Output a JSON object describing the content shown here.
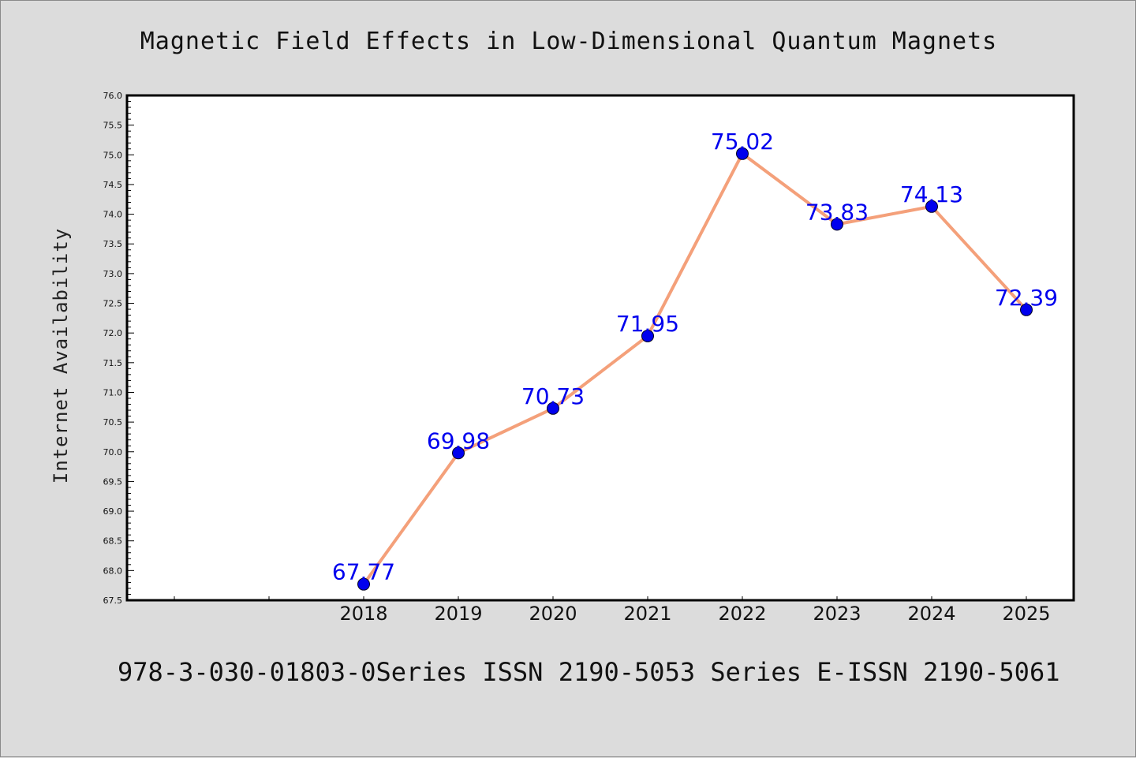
{
  "title": "Magnetic Field Effects in Low-Dimensional Quantum Magnets",
  "footer": "978-3-030-01803-0Series ISSN 2190-5053 Series E-ISSN 2190-5061",
  "colors": {
    "background": "#dcdcdc",
    "plot_background": "#ffffff",
    "line": "#f4a07a",
    "marker": "#0000ee",
    "data_label": "#0000ee"
  },
  "chart_data": {
    "type": "line",
    "title": "Magnetic Field Effects in Low-Dimensional Quantum Magnets",
    "xlabel": "",
    "ylabel": "Internet Availability",
    "x": [
      "2018",
      "2019",
      "2020",
      "2021",
      "2022",
      "2023",
      "2024",
      "2025"
    ],
    "series": [
      {
        "values": [
          67.77,
          69.98,
          70.73,
          71.95,
          75.02,
          73.83,
          74.13,
          72.39
        ]
      }
    ],
    "data_labels": [
      "67.77",
      "69.98",
      "70.73",
      "71.95",
      "75.02",
      "73.83",
      "74.13",
      "72.39"
    ],
    "ylim": [
      67.5,
      76.0
    ],
    "yticks": [
      "67.5",
      "68.0",
      "68.5",
      "69.0",
      "69.5",
      "70.0",
      "70.5",
      "71.0",
      "71.5",
      "72.0",
      "72.5",
      "73.0",
      "73.5",
      "74.0",
      "74.5",
      "75.0",
      "75.5",
      "76.0"
    ],
    "grid": false,
    "legend": "none"
  }
}
